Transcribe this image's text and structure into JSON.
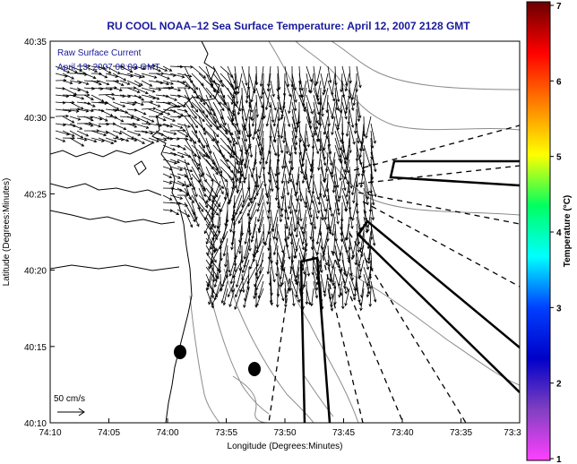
{
  "title": "RU COOL  NOAA–12  Sea Surface Temperature:  April 12, 2007 2128 GMT",
  "overlay": {
    "line1": "Raw Surface Current",
    "line2": "April 13, 2007 00:00 GMT"
  },
  "axes": {
    "xlabel": "Longitude (Degrees:Minutes)",
    "ylabel": "Latitude (Degrees:Minutes)",
    "xticks": [
      "74:10",
      "74:05",
      "74:00",
      "73:55",
      "73:50",
      "73:45",
      "73:40",
      "73:35",
      "73:3"
    ],
    "yticks": [
      "40:35",
      "40:30",
      "40:25",
      "40:20",
      "40:15",
      "40:10"
    ]
  },
  "scale": {
    "label": "50 cm/s"
  },
  "colorbar": {
    "label": "Temperature (°C)",
    "ticks": [
      "7",
      "6",
      "5",
      "4",
      "3",
      "2",
      "1"
    ],
    "colors": [
      "#6a0000",
      "#ff0000",
      "#ff8000",
      "#ffff00",
      "#00ff60",
      "#00ffff",
      "#0040ff",
      "#0000c8",
      "#8040c0",
      "#ff40ff"
    ]
  },
  "colors": {
    "title": "#1a1a9c",
    "overlay": "#1a1a9c",
    "map_background": "#ffffff",
    "coastline": "#000000",
    "bathymetry": "#8c8c8c"
  }
}
